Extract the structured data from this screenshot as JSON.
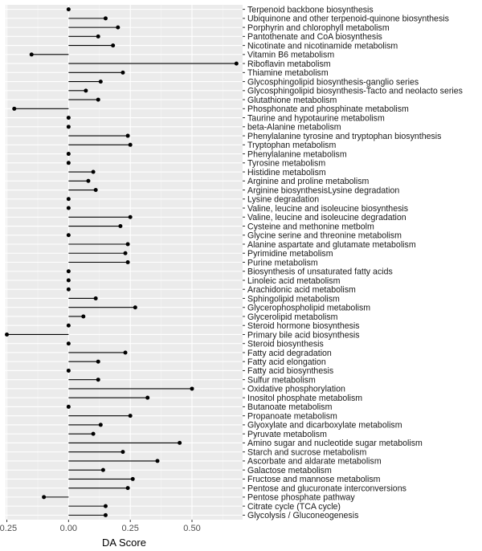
{
  "chart_data": {
    "type": "lollipop",
    "orientation": "horizontal",
    "xlabel": "DA Score",
    "ylabel": "",
    "xlim": [
      -0.255,
      0.705
    ],
    "xticks": [
      -0.25,
      0,
      0.25,
      0.5
    ],
    "xtick_labels": [
      "-0.25",
      "0.00",
      "0.25",
      "0.50"
    ],
    "grid": true,
    "categories": [
      "Terpenoid backbone biosynthesis",
      "Ubiquinone and other terpenoid-quinone biosynthesis",
      "Porphyrin and chlorophyll metabolism",
      "Pantothenate and CoA biosynthesis",
      "Nicotinate and nicotinamide metabolism",
      "Vitamin B6 metabolism",
      "Riboflavin metabolism",
      "Thiamine metabolism",
      "Glycosphingolipid biosynthesis-ganglio series",
      "Glycosphingolipid biosynthesis-Tacto and neolacto series",
      "Glutathione metabolism",
      "Phosphonate and phosphinate metabolism",
      "Taurine and hypotaurine metabolism",
      "beta-Alanine metabolism",
      "Phenylalanine tyrosine and tryptophan biosynthesis",
      "Tryptophan metabolism",
      "Phenylalanine metabolism",
      "Tyrosine metabolism",
      "Histidine metabolism",
      "Arginine and proline metabolism",
      "Arginine biosynthesisLysine degradation",
      "Lysine degradation",
      "Valine, leucine and isoleucine biosynthesis",
      "Valine, leucine and isoleucine degradation",
      "Cysteine and methonine metbolm",
      "Glycine serine and threonine metabolism",
      "Alanine aspartate and glutamate metabolism",
      "Pyrimidine metabolism",
      "Purine metabolism",
      "Biosynthesis of unsaturated fatty acids",
      "Linoleic acid metabolism",
      "Arachidonic acid metabolism",
      "Sphingolipid metabolism",
      "Glycerophospholipid metabolism",
      "Glycerolipid metabolism",
      "Steroid hormone biosynthesis",
      "Primary bile acid biosynthesis",
      "Steroid biosynthesis",
      "Fatty acid degradation",
      "Fatty acid elongation",
      "Fatty acid biosynthesis",
      "Sulfur metabolism",
      "Oxidative phosphorylation",
      "Inositol phosphate metabolism",
      "Butanoate metabolism",
      "Propanoate metabolism",
      "Glyoxylate and dicarboxylate metabolism",
      "Pyruvate metabolism",
      "Amino sugar and nucleotide sugar metabolism",
      "Starch and sucrose metabolism",
      "Ascorbate and aldarate metabolism",
      "Galactose metabolism",
      "Fructose and mannose metabolism",
      "Pentose and glucuronate interconversions",
      "Pentose phosphate pathway",
      "Citrate cycle (TCA cycle)",
      "Glycolysis / Gluconeogenesis"
    ],
    "values": [
      0.0,
      0.15,
      0.2,
      0.12,
      0.18,
      -0.15,
      0.68,
      0.22,
      0.13,
      0.07,
      0.12,
      -0.22,
      0.0,
      0.0,
      0.24,
      0.25,
      0.0,
      0.0,
      0.1,
      0.08,
      0.11,
      0.0,
      0.0,
      0.25,
      0.21,
      0.0,
      0.24,
      0.23,
      0.24,
      0.0,
      0.0,
      0.0,
      0.11,
      0.27,
      0.06,
      0.0,
      -0.25,
      0.0,
      0.23,
      0.12,
      0.0,
      0.12,
      0.5,
      0.32,
      0.0,
      0.25,
      0.13,
      0.1,
      0.45,
      0.22,
      0.36,
      0.14,
      0.26,
      0.24,
      -0.1,
      0.15,
      0.15
    ],
    "colors": {
      "panel": "#ebebeb",
      "grid_major": "#ffffff",
      "grid_minor": "#f5f5f5",
      "mark": "#000000",
      "tick_label": "#4d4d4d",
      "category_label": "#1a1a1a"
    }
  }
}
